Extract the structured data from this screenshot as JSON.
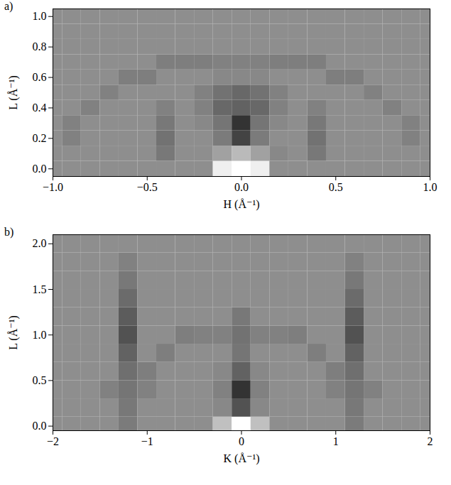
{
  "chart_data": [
    {
      "type": "heatmap",
      "panel_label": "a)",
      "x_label": "H (Å⁻¹)",
      "y_label": "L (Å⁻¹)",
      "x": [
        -1.0,
        -0.9,
        -0.8,
        -0.7,
        -0.6,
        -0.5,
        -0.4,
        -0.3,
        -0.2,
        -0.1,
        0.0,
        0.1,
        0.2,
        0.3,
        0.4,
        0.5,
        0.6,
        0.7,
        0.8,
        0.9,
        1.0
      ],
      "y": [
        0.0,
        0.1,
        0.2,
        0.3,
        0.4,
        0.5,
        0.6,
        0.7,
        0.8,
        0.9,
        1.0
      ],
      "cells": [
        [
          64,
          64,
          64,
          64,
          64,
          64,
          64,
          64,
          64,
          95,
          100,
          95,
          64,
          64,
          64,
          64,
          64,
          64,
          64,
          64,
          64
        ],
        [
          64,
          64,
          64,
          64,
          64,
          64,
          57,
          64,
          64,
          70,
          78,
          70,
          62,
          64,
          57,
          64,
          64,
          64,
          64,
          64,
          64
        ],
        [
          64,
          60,
          64,
          64,
          64,
          64,
          55,
          64,
          64,
          58,
          40,
          58,
          64,
          64,
          55,
          64,
          64,
          64,
          64,
          60,
          64
        ],
        [
          64,
          60,
          64,
          64,
          64,
          64,
          57,
          64,
          62,
          56,
          35,
          56,
          62,
          64,
          57,
          64,
          64,
          64,
          64,
          60,
          64
        ],
        [
          64,
          64,
          60,
          64,
          64,
          64,
          60,
          64,
          60,
          52,
          50,
          52,
          60,
          64,
          60,
          64,
          64,
          64,
          60,
          64,
          64
        ],
        [
          64,
          64,
          64,
          60,
          64,
          64,
          64,
          64,
          60,
          55,
          52,
          55,
          60,
          64,
          64,
          64,
          64,
          60,
          64,
          64,
          64
        ],
        [
          64,
          64,
          64,
          64,
          59,
          59,
          64,
          64,
          64,
          62,
          62,
          62,
          64,
          64,
          64,
          59,
          59,
          64,
          64,
          64,
          64
        ],
        [
          64,
          64,
          64,
          64,
          64,
          64,
          59,
          59,
          59,
          60,
          60,
          60,
          59,
          59,
          59,
          64,
          64,
          64,
          64,
          64,
          64
        ],
        [
          64,
          64,
          64,
          64,
          64,
          64,
          64,
          64,
          64,
          64,
          64,
          64,
          64,
          64,
          64,
          64,
          64,
          64,
          64,
          64,
          64
        ],
        [
          64,
          64,
          64,
          64,
          64,
          64,
          64,
          64,
          64,
          64,
          64,
          64,
          64,
          64,
          64,
          64,
          64,
          64,
          64,
          64,
          64
        ],
        [
          64,
          64,
          64,
          64,
          64,
          64,
          64,
          64,
          64,
          64,
          64,
          64,
          64,
          64,
          64,
          64,
          64,
          64,
          64,
          64,
          64
        ]
      ],
      "xlim": [
        -1.0,
        1.0
      ],
      "ylim": [
        -0.05,
        1.05
      ],
      "xticks": [
        {
          "value": -1.0,
          "label": "−1.0"
        },
        {
          "value": -0.5,
          "label": "−0.5"
        },
        {
          "value": 0,
          "label": "0.0"
        },
        {
          "value": 0.5,
          "label": "0.5"
        },
        {
          "value": 1.0,
          "label": "1.0"
        }
      ],
      "yticks": [
        {
          "value": 0,
          "label": "0.0"
        },
        {
          "value": 0.2,
          "label": "0.2"
        },
        {
          "value": 0.4,
          "label": "0.4"
        },
        {
          "value": 0.6,
          "label": "0.6"
        },
        {
          "value": 0.8,
          "label": "0.8"
        },
        {
          "value": 1.0,
          "label": "1.0"
        }
      ]
    },
    {
      "type": "heatmap",
      "panel_label": "b)",
      "x_label": "K (Å⁻¹)",
      "y_label": "L (Å⁻¹)",
      "x": [
        -2.0,
        -1.8,
        -1.6,
        -1.4,
        -1.2,
        -1.0,
        -0.8,
        -0.6,
        -0.4,
        -0.2,
        0.0,
        0.2,
        0.4,
        0.6,
        0.8,
        1.0,
        1.2,
        1.4,
        1.6,
        1.8,
        2.0
      ],
      "y": [
        0.0,
        0.2,
        0.4,
        0.6,
        0.8,
        1.0,
        1.2,
        1.4,
        1.6,
        1.8,
        2.0
      ],
      "cells": [
        [
          64,
          64,
          64,
          64,
          58,
          64,
          64,
          64,
          64,
          80,
          100,
          80,
          64,
          64,
          64,
          64,
          58,
          64,
          64,
          64,
          64
        ],
        [
          64,
          64,
          64,
          64,
          57,
          64,
          64,
          64,
          64,
          62,
          45,
          62,
          64,
          64,
          64,
          64,
          57,
          64,
          64,
          64,
          64
        ],
        [
          64,
          64,
          64,
          60,
          56,
          60,
          64,
          64,
          64,
          60,
          35,
          60,
          64,
          64,
          64,
          60,
          56,
          60,
          64,
          64,
          64
        ],
        [
          64,
          64,
          64,
          64,
          54,
          59,
          64,
          64,
          64,
          62,
          50,
          62,
          64,
          64,
          64,
          59,
          54,
          64,
          64,
          64,
          64
        ],
        [
          64,
          64,
          64,
          64,
          50,
          64,
          59,
          64,
          64,
          64,
          56,
          64,
          64,
          64,
          59,
          64,
          50,
          64,
          64,
          64,
          64
        ],
        [
          64,
          64,
          64,
          64,
          45,
          64,
          64,
          59,
          60,
          60,
          55,
          60,
          60,
          59,
          64,
          64,
          45,
          64,
          64,
          64,
          64
        ],
        [
          64,
          64,
          64,
          64,
          48,
          64,
          64,
          64,
          64,
          64,
          57,
          64,
          64,
          64,
          64,
          64,
          48,
          64,
          64,
          64,
          64
        ],
        [
          64,
          64,
          64,
          64,
          53,
          64,
          64,
          64,
          64,
          64,
          64,
          64,
          64,
          64,
          64,
          64,
          53,
          64,
          64,
          64,
          64
        ],
        [
          64,
          64,
          64,
          64,
          57,
          64,
          64,
          64,
          64,
          64,
          64,
          64,
          64,
          64,
          64,
          64,
          57,
          64,
          64,
          64,
          64
        ],
        [
          64,
          64,
          64,
          64,
          60,
          64,
          64,
          64,
          64,
          64,
          64,
          64,
          64,
          64,
          64,
          64,
          60,
          64,
          64,
          64,
          64
        ],
        [
          64,
          64,
          64,
          64,
          64,
          64,
          64,
          64,
          64,
          64,
          64,
          64,
          64,
          64,
          64,
          64,
          64,
          64,
          64,
          64,
          64
        ]
      ],
      "xlim": [
        -2.0,
        2.0
      ],
      "ylim": [
        -0.05,
        2.1
      ],
      "xticks": [
        {
          "value": -2,
          "label": "−2"
        },
        {
          "value": -1,
          "label": "−1"
        },
        {
          "value": 0,
          "label": "0"
        },
        {
          "value": 1,
          "label": "1"
        },
        {
          "value": 2,
          "label": "2"
        }
      ],
      "yticks": [
        {
          "value": 0,
          "label": "0.0"
        },
        {
          "value": 0.5,
          "label": "0.5"
        },
        {
          "value": 1.0,
          "label": "1.0"
        },
        {
          "value": 1.5,
          "label": "1.5"
        },
        {
          "value": 2.0,
          "label": "2.0"
        }
      ]
    }
  ]
}
